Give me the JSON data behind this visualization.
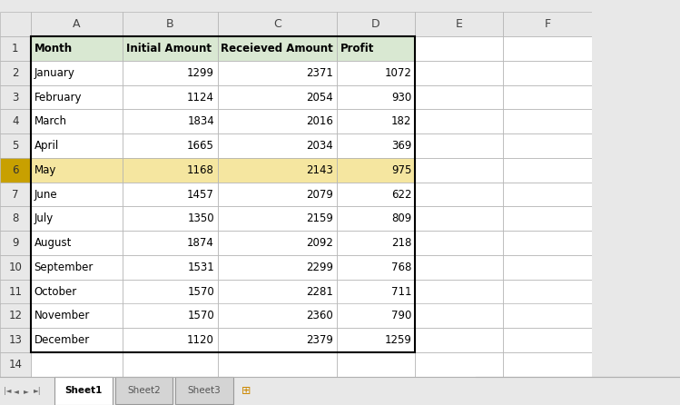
{
  "headers": [
    "Month",
    "Initial Amount",
    "Receieved Amount",
    "Profit"
  ],
  "rows": [
    [
      "January",
      1299,
      2371,
      1072
    ],
    [
      "February",
      1124,
      2054,
      930
    ],
    [
      "March",
      1834,
      2016,
      182
    ],
    [
      "April",
      1665,
      2034,
      369
    ],
    [
      "May",
      1168,
      2143,
      975
    ],
    [
      "June",
      1457,
      2079,
      622
    ],
    [
      "July",
      1350,
      2159,
      809
    ],
    [
      "August",
      1874,
      2092,
      218
    ],
    [
      "September",
      1531,
      2299,
      768
    ],
    [
      "October",
      1570,
      2281,
      711
    ],
    [
      "November",
      1570,
      2360,
      790
    ],
    [
      "December",
      1120,
      2379,
      1259
    ]
  ],
  "col_labels": [
    "A",
    "B",
    "C",
    "D",
    "E",
    "F"
  ],
  "row_numbers": [
    "1",
    "2",
    "3",
    "4",
    "5",
    "6",
    "7",
    "8",
    "9",
    "10",
    "11",
    "12",
    "13",
    "14"
  ],
  "header_bg": "#d9e8d2",
  "row6_bg": "#f5e6a0",
  "row6_number_bg": "#c8a000",
  "grid_color": "#b0b0b0",
  "sheet_tab_active": "Sheet1",
  "sheet_tabs": [
    "Sheet1",
    "Sheet2",
    "Sheet3"
  ],
  "bg_color": "#ffffff",
  "outer_bg": "#e8e8e8",
  "tab_bar_color": "#f0f0f0"
}
